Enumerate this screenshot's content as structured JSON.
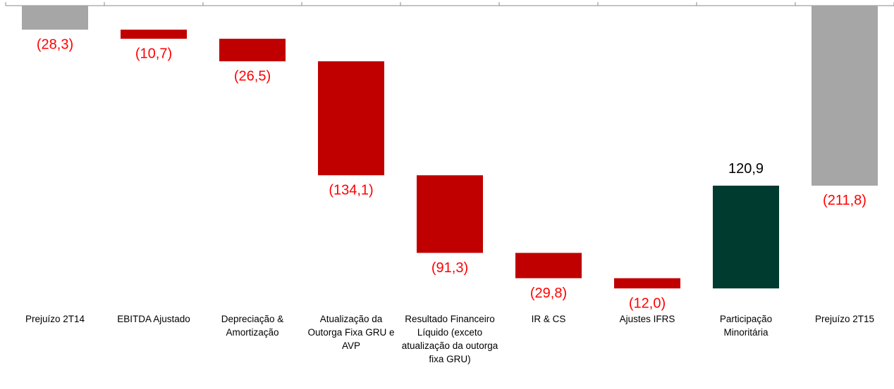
{
  "chart_data": {
    "type": "waterfall",
    "categories": [
      "Prejuízo 2T14",
      "EBITDA Ajustado",
      "Depreciação & Amortização",
      "Atualização da Outorga Fixa GRU e AVP",
      "Resultado Financeiro Líquido (exceto atualização da outorga fixa GRU)",
      "IR & CS",
      "Ajustes IFRS",
      "Participação Minoritária",
      "Prejuízo 2T15"
    ],
    "values": [
      -28.3,
      -10.7,
      -26.5,
      -134.1,
      -91.3,
      -29.8,
      -12.0,
      120.9,
      -211.8
    ],
    "value_labels": [
      "(28,3)",
      "(10,7)",
      "(26,5)",
      "(134,1)",
      "(91,3)",
      "(29,8)",
      "(12,0)",
      "120,9",
      "(211,8)"
    ],
    "bar_kinds": [
      "total",
      "delta",
      "delta",
      "delta",
      "delta",
      "delta",
      "delta",
      "delta",
      "total"
    ],
    "colors": {
      "total": "#a6a6a6",
      "negative": "#c00000",
      "positive": "#003b30"
    },
    "label_colors": {
      "negative": "#ff0000",
      "positive": "#000000"
    }
  }
}
